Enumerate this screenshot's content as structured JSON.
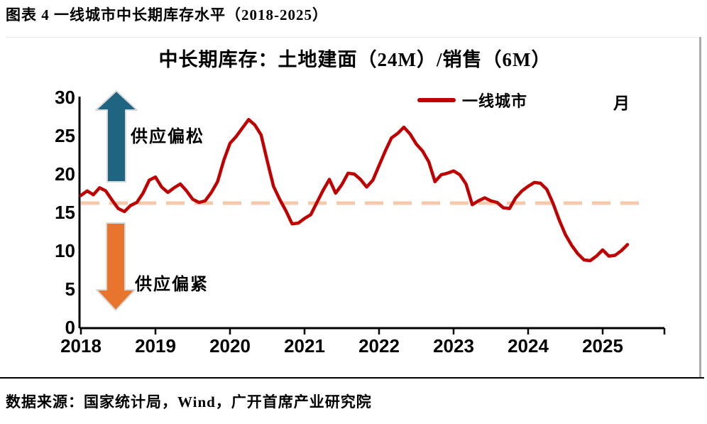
{
  "figure": {
    "caption": "图表 4 一线城市中长期库存水平（2018-2025）",
    "source": "数据来源：国家统计局，Wind，广开首席产业研究院"
  },
  "chart_data": {
    "type": "line",
    "title": "中长期库存：土地建面（24M）/销售（6M）",
    "unit_label": "月",
    "x_monthly_start": "2018-01",
    "x_monthly_end": "2025-05",
    "x_ticks": [
      "2018",
      "2019",
      "2020",
      "2021",
      "2022",
      "2023",
      "2024",
      "2025"
    ],
    "y_ticks": [
      0,
      5,
      10,
      15,
      20,
      25,
      30
    ],
    "ylim": [
      0,
      30
    ],
    "grid": false,
    "legend_position": "top-right",
    "series": [
      {
        "name": "一线城市",
        "color": "#C00000",
        "values": [
          17.2,
          17.8,
          17.3,
          18.2,
          17.8,
          16.6,
          15.5,
          15.1,
          15.9,
          16.3,
          17.5,
          19.2,
          19.6,
          18.3,
          17.6,
          18.2,
          18.7,
          17.8,
          16.7,
          16.3,
          16.5,
          17.6,
          19.0,
          21.8,
          24.0,
          24.9,
          26.0,
          27.1,
          26.4,
          25.1,
          21.7,
          18.4,
          16.7,
          15.2,
          13.5,
          13.6,
          14.2,
          14.7,
          16.3,
          17.9,
          19.3,
          17.5,
          18.6,
          20.1,
          20.0,
          19.3,
          18.3,
          19.2,
          21.1,
          23.0,
          24.7,
          25.3,
          26.1,
          25.2,
          23.9,
          23.0,
          21.6,
          19.0,
          19.9,
          20.1,
          20.4,
          19.9,
          18.7,
          16.0,
          16.5,
          16.9,
          16.5,
          16.3,
          15.6,
          15.5,
          16.9,
          17.8,
          18.4,
          18.9,
          18.8,
          18.0,
          16.2,
          14.0,
          12.1,
          10.7,
          9.6,
          8.8,
          8.7,
          9.3,
          10.1,
          9.3,
          9.4,
          10.0,
          10.8
        ]
      }
    ],
    "reference_line": {
      "value": 16.2,
      "color": "#F8C9A9",
      "style": "dashed"
    },
    "annotations": [
      {
        "text": "供应偏松",
        "arrow": "up",
        "color": "#1F6480"
      },
      {
        "text": "供应偏紧",
        "arrow": "down",
        "color": "#E8752E"
      }
    ]
  }
}
